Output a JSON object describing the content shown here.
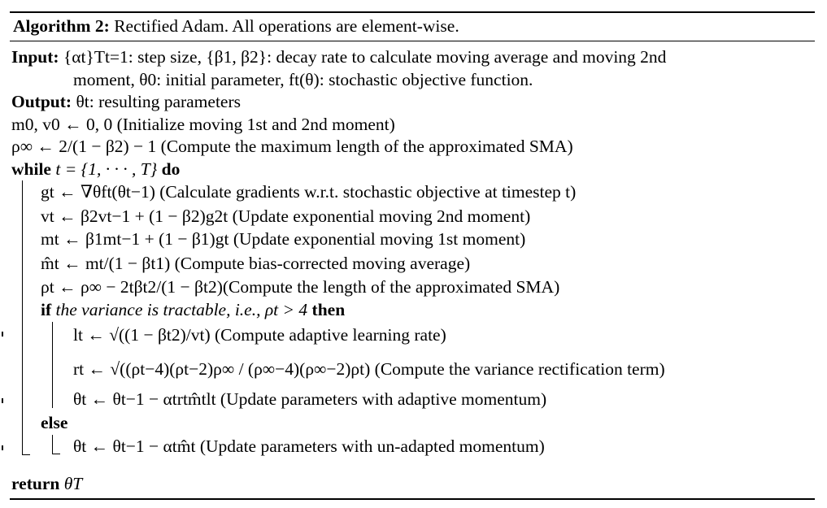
{
  "title": {
    "label": "Algorithm 2:",
    "text": "Rectified Adam. All operations are element-wise."
  },
  "input": {
    "label": "Input:",
    "line1": "{αt}Tt=1: step size, {β1, β2}: decay rate to calculate moving average and moving 2nd",
    "line2": "moment, θ0: initial parameter, ft(θ): stochastic objective function."
  },
  "output": {
    "label": "Output:",
    "text": "θt: resulting parameters"
  },
  "init": {
    "line1": "m0, v0 ← 0, 0 (Initialize moving 1st and 2nd moment)",
    "line2": "ρ∞ ← 2/(1 − β2) − 1 (Compute the maximum length of the approximated SMA)"
  },
  "loop": {
    "while_kw": "while",
    "while_cond": "t = {1, · · · , T}",
    "do_kw": "do",
    "body": [
      "gt ← ∇θft(θt−1) (Calculate gradients w.r.t. stochastic objective at timestep t)",
      "vt ← β2vt−1 + (1 − β2)g2t (Update exponential moving 2nd moment)",
      "mt ← β1mt−1 + (1 − β1)gt (Update exponential moving 1st moment)",
      "m̂t ← mt/(1 − βt1) (Compute bias-corrected moving average)",
      "ρt ← ρ∞ − 2tβt2/(1 − βt2)(Compute the length of the approximated SMA)"
    ],
    "if_kw": "if",
    "if_cond": "the variance is tractable, i.e., ρt > 4",
    "then_kw": "then",
    "if_body": [
      "lt ← √((1 − βt2)/vt) (Compute adaptive learning rate)",
      "rt ← √((ρt−4)(ρt−2)ρ∞ / (ρ∞−4)(ρ∞−2)ρt) (Compute the variance rectification term)",
      "θt ← θt−1 − αtrtm̂tlt (Update parameters with adaptive momentum)"
    ],
    "else_kw": "else",
    "else_body": [
      "θt ← θt−1 − αtm̂t (Update parameters with un-adapted momentum)"
    ]
  },
  "return": {
    "kw": "return",
    "text": "θT"
  }
}
